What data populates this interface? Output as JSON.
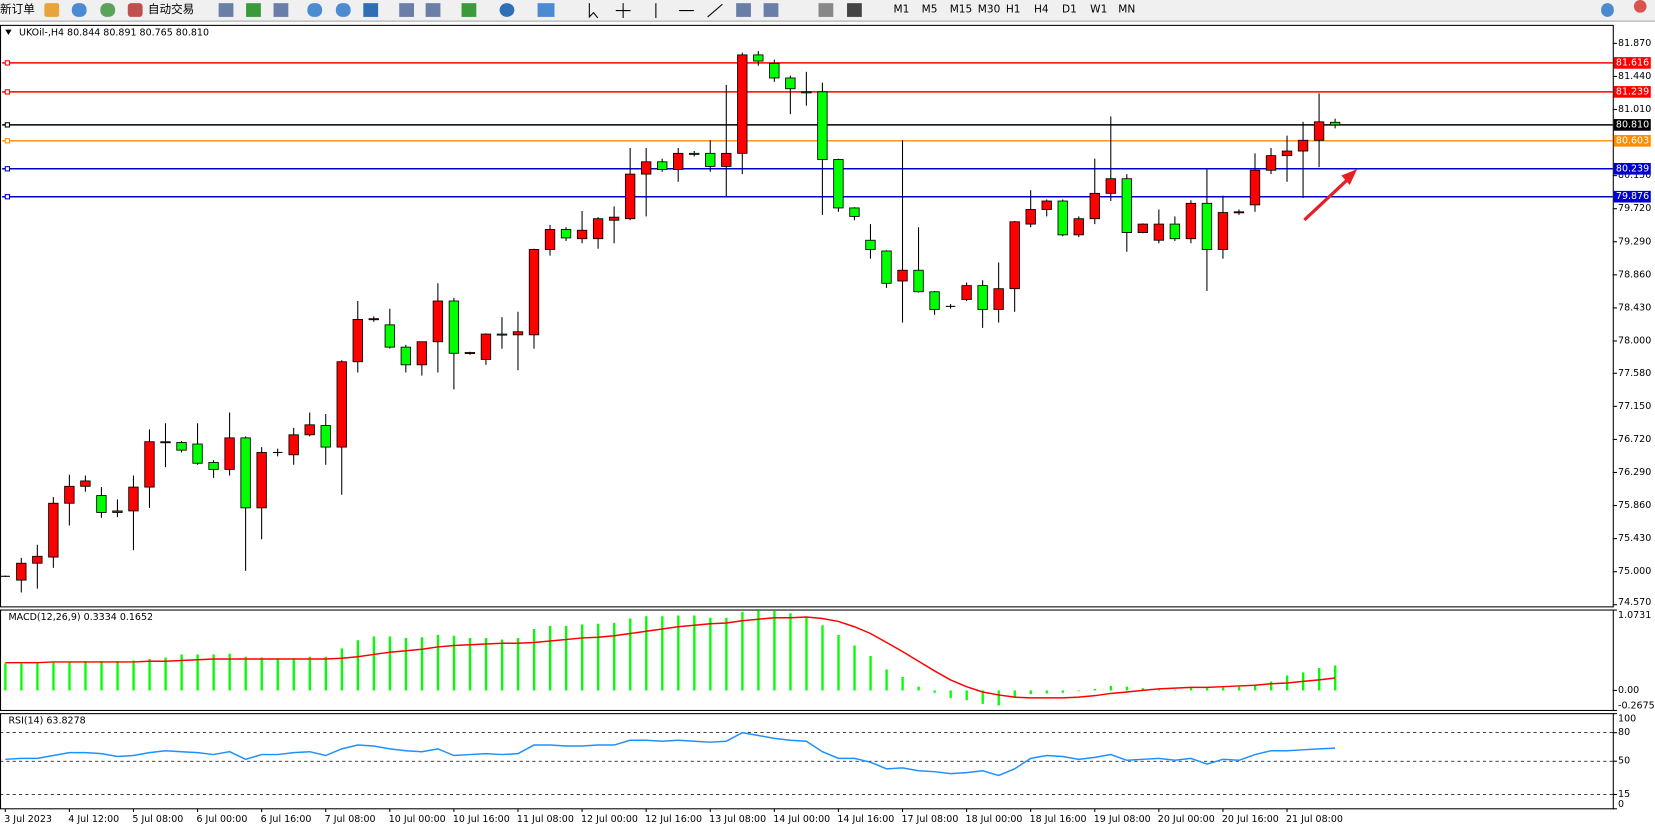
{
  "toolbar": {
    "new_order": "新订单",
    "auto_trading": "自动交易",
    "timeframes": [
      "M1",
      "M5",
      "M15",
      "M30",
      "H1",
      "H4",
      "D1",
      "W1",
      "MN"
    ]
  },
  "chart_data": [
    {
      "type": "candlestick",
      "title": "UKOil-,H4  80.844 80.891 80.765 80.810",
      "categories": [
        "3 Jul 2023",
        null,
        null,
        null,
        "4 Jul 12:00",
        null,
        null,
        null,
        "5 Jul 08:00",
        null,
        null,
        null,
        "6 Jul 00:00",
        null,
        null,
        null,
        "6 Jul 16:00",
        null,
        null,
        null,
        "7 Jul 08:00",
        null,
        null,
        null,
        "10 Jul 00:00",
        null,
        null,
        null,
        "10 Jul 16:00",
        null,
        null,
        null,
        "11 Jul 08:00",
        null,
        null,
        null,
        "12 Jul 00:00",
        null,
        null,
        null,
        "12 Jul 16:00",
        null,
        null,
        null,
        "13 Jul 08:00",
        null,
        null,
        null,
        "14 Jul 00:00",
        null,
        null,
        null,
        "14 Jul 16:00",
        null,
        null,
        null,
        "17 Jul 08:00",
        null,
        null,
        null,
        "18 Jul 00:00",
        null,
        null,
        null,
        "18 Jul 16:00",
        null,
        null,
        null,
        "19 Jul 08:00",
        null,
        null,
        null,
        "20 Jul 00:00",
        null,
        null,
        null,
        "20 Jul 16:00",
        null,
        null,
        null,
        "21 Jul 08:00",
        null,
        null,
        null
      ],
      "open": [
        74.94,
        74.89,
        75.11,
        75.19,
        75.89,
        76.11,
        75.99,
        75.77,
        75.79,
        76.1,
        76.68,
        76.68,
        76.66,
        76.42,
        76.33,
        76.74,
        75.83,
        76.55,
        76.52,
        76.78,
        76.9,
        76.62,
        77.73,
        78.28,
        78.21,
        77.92,
        77.69,
        77.99,
        78.52,
        77.84,
        77.76,
        78.09,
        78.08,
        78.08,
        79.19,
        79.45,
        79.33,
        79.33,
        79.57,
        79.59,
        80.17,
        80.33,
        80.23,
        80.44,
        80.44,
        80.27,
        80.44,
        81.72,
        81.61,
        81.42,
        81.24,
        81.24,
        80.36,
        79.73,
        79.31,
        79.17,
        78.78,
        78.92,
        78.64,
        78.45,
        78.54,
        78.72,
        78.41,
        78.68,
        79.52,
        79.71,
        79.82,
        79.38,
        79.59,
        79.92,
        80.11,
        79.41,
        79.31,
        79.52,
        79.33,
        79.79,
        79.19,
        79.67,
        79.77,
        80.22,
        80.41,
        80.47,
        80.61,
        80.844
      ],
      "high": [
        74.95,
        75.18,
        75.35,
        75.97,
        76.26,
        76.25,
        76.1,
        75.94,
        76.25,
        76.85,
        76.93,
        76.7,
        76.93,
        76.45,
        77.07,
        76.76,
        76.62,
        76.6,
        76.87,
        77.07,
        77.05,
        77.75,
        78.52,
        78.32,
        78.42,
        77.95,
        77.99,
        78.75,
        78.56,
        77.86,
        78.1,
        78.31,
        78.38,
        79.2,
        79.51,
        79.48,
        79.69,
        79.61,
        79.75,
        80.51,
        80.51,
        80.37,
        80.51,
        80.47,
        80.61,
        81.33,
        81.75,
        81.77,
        81.66,
        81.45,
        81.5,
        81.36,
        80.37,
        79.74,
        79.52,
        79.18,
        80.61,
        79.48,
        78.65,
        78.48,
        78.76,
        78.79,
        79.02,
        79.56,
        79.96,
        79.84,
        79.84,
        79.62,
        80.37,
        80.92,
        80.17,
        79.53,
        79.71,
        79.62,
        79.83,
        80.23,
        79.89,
        79.71,
        80.44,
        80.51,
        80.67,
        80.85,
        81.22,
        80.891
      ],
      "low": [
        74.93,
        74.73,
        74.78,
        75.05,
        75.6,
        76.04,
        75.7,
        75.71,
        75.28,
        75.83,
        76.36,
        76.55,
        76.39,
        76.22,
        76.25,
        75.01,
        75.42,
        76.5,
        76.39,
        76.76,
        76.39,
        76.0,
        77.59,
        78.25,
        77.9,
        77.59,
        77.55,
        77.59,
        77.37,
        77.82,
        77.69,
        77.9,
        77.62,
        77.9,
        79.11,
        79.3,
        79.27,
        79.2,
        79.27,
        79.57,
        79.62,
        80.2,
        80.07,
        80.4,
        80.2,
        79.88,
        80.17,
        81.58,
        81.37,
        80.95,
        81.06,
        79.64,
        79.68,
        79.57,
        79.07,
        78.69,
        78.24,
        78.63,
        78.34,
        78.42,
        78.52,
        78.17,
        78.24,
        78.38,
        79.48,
        79.62,
        79.36,
        79.35,
        79.52,
        79.82,
        79.16,
        79.4,
        79.27,
        79.3,
        79.27,
        78.65,
        79.07,
        79.64,
        79.68,
        80.17,
        80.07,
        79.86,
        80.26,
        80.765
      ],
      "close": [
        74.94,
        75.11,
        75.2,
        75.89,
        76.11,
        76.18,
        75.77,
        75.79,
        76.1,
        76.69,
        76.69,
        76.58,
        76.41,
        76.33,
        76.74,
        75.83,
        76.55,
        76.55,
        76.78,
        76.91,
        76.62,
        77.73,
        78.28,
        78.29,
        77.92,
        77.69,
        77.99,
        78.52,
        77.84,
        77.85,
        78.09,
        78.08,
        78.12,
        79.19,
        79.45,
        79.34,
        79.44,
        79.59,
        79.61,
        80.17,
        80.33,
        80.23,
        80.44,
        80.43,
        80.27,
        80.44,
        81.72,
        81.64,
        81.42,
        81.28,
        81.23,
        80.36,
        79.73,
        79.62,
        79.19,
        78.75,
        78.92,
        78.64,
        78.41,
        78.45,
        78.72,
        78.41,
        78.68,
        79.55,
        79.71,
        79.82,
        79.38,
        79.59,
        79.92,
        80.11,
        79.41,
        79.52,
        79.52,
        79.33,
        79.79,
        79.19,
        79.67,
        79.68,
        80.22,
        80.41,
        80.47,
        80.61,
        80.85,
        80.81
      ],
      "up_color": "#ff0000",
      "down_color": "#00ff00",
      "ylim": [
        74.5425,
        82.104
      ],
      "yticks": [
        {
          "value": 81.87,
          "label": "81.870"
        },
        {
          "value": 81.44,
          "label": "81.440"
        },
        {
          "value": 81.01,
          "label": "81.010"
        },
        {
          "value": 80.15,
          "label": "80.150"
        },
        {
          "value": 79.72,
          "label": "79.720"
        },
        {
          "value": 79.29,
          "label": "79.290"
        },
        {
          "value": 78.86,
          "label": "78.860"
        },
        {
          "value": 78.43,
          "label": "78.430"
        },
        {
          "value": 78.0,
          "label": "78.000"
        },
        {
          "value": 77.58,
          "label": "77.580"
        },
        {
          "value": 77.15,
          "label": "77.150"
        },
        {
          "value": 76.72,
          "label": "76.720"
        },
        {
          "value": 76.29,
          "label": "76.290"
        },
        {
          "value": 75.86,
          "label": "75.860"
        },
        {
          "value": 75.43,
          "label": "75.430"
        },
        {
          "value": 75.0,
          "label": "75.000"
        },
        {
          "value": 74.57,
          "label": "74.570"
        }
      ],
      "hlines": [
        {
          "value": 81.616,
          "label": "81.616",
          "color": "#ff0000"
        },
        {
          "value": 81.239,
          "label": "81.239",
          "color": "#ff0000"
        },
        {
          "value": 80.81,
          "label": "80.810",
          "color": "#000000"
        },
        {
          "value": 80.603,
          "label": "80.603",
          "color": "#ff8c00"
        },
        {
          "value": 80.239,
          "label": "80.239",
          "color": "#0000cd"
        },
        {
          "value": 79.876,
          "label": "79.876",
          "color": "#0000cd"
        }
      ]
    },
    {
      "type": "combo",
      "title": "MACD(12,26,9) 0.3334 0.1652",
      "series": [
        {
          "type": "bar",
          "color": "#00ff00",
          "values": [
            0.36,
            0.36,
            0.37,
            0.38,
            0.38,
            0.39,
            0.39,
            0.39,
            0.4,
            0.42,
            0.44,
            0.48,
            0.48,
            0.48,
            0.49,
            0.45,
            0.44,
            0.43,
            0.43,
            0.45,
            0.45,
            0.56,
            0.67,
            0.72,
            0.72,
            0.7,
            0.71,
            0.74,
            0.73,
            0.7,
            0.7,
            0.68,
            0.7,
            0.82,
            0.86,
            0.86,
            0.88,
            0.89,
            0.9,
            0.96,
            0.99,
            0.99,
            1.0,
            1.0,
            0.97,
            0.97,
            1.05,
            1.07,
            1.06,
            1.03,
            0.98,
            0.87,
            0.74,
            0.6,
            0.46,
            0.28,
            0.18,
            0.05,
            -0.03,
            -0.1,
            -0.13,
            -0.18,
            -0.2,
            -0.1,
            -0.05,
            -0.04,
            -0.03,
            -0.01,
            0.02,
            0.06,
            0.05,
            0.03,
            0.02,
            0.01,
            0.04,
            0.03,
            0.04,
            0.05,
            0.07,
            0.12,
            0.2,
            0.24,
            0.3,
            0.3334
          ]
        },
        {
          "type": "line",
          "color": "#ff0000",
          "values": [
            0.37,
            0.37,
            0.37,
            0.38,
            0.38,
            0.38,
            0.38,
            0.38,
            0.38,
            0.39,
            0.39,
            0.4,
            0.41,
            0.42,
            0.42,
            0.42,
            0.42,
            0.42,
            0.42,
            0.42,
            0.42,
            0.43,
            0.45,
            0.48,
            0.51,
            0.53,
            0.55,
            0.58,
            0.6,
            0.61,
            0.62,
            0.63,
            0.63,
            0.64,
            0.66,
            0.68,
            0.7,
            0.71,
            0.73,
            0.76,
            0.79,
            0.82,
            0.85,
            0.87,
            0.89,
            0.9,
            0.93,
            0.95,
            0.97,
            0.97,
            0.98,
            0.96,
            0.92,
            0.85,
            0.76,
            0.64,
            0.52,
            0.39,
            0.26,
            0.14,
            0.05,
            -0.02,
            -0.06,
            -0.09,
            -0.1,
            -0.1,
            -0.1,
            -0.09,
            -0.07,
            -0.04,
            -0.02,
            0.0,
            0.02,
            0.03,
            0.04,
            0.04,
            0.05,
            0.06,
            0.07,
            0.09,
            0.1,
            0.12,
            0.14,
            0.1652
          ]
        }
      ],
      "ylim": [
        -0.2675,
        1.0731
      ],
      "yticks": [
        1.0731,
        {
          "value": 0,
          "label": "0.00"
        },
        -0.2675
      ]
    },
    {
      "type": "line",
      "title": "RSI(14) 63.8278",
      "series": [
        {
          "color": "#1e90ff",
          "values": [
            52,
            53,
            53,
            56,
            59,
            59,
            58,
            55,
            56,
            59,
            61,
            60,
            59,
            57,
            60,
            52,
            57,
            57,
            59,
            60,
            56,
            63,
            67,
            66,
            63,
            61,
            60,
            63,
            56,
            57,
            58,
            57,
            58,
            67,
            67,
            66,
            66,
            67,
            67,
            72,
            72,
            71,
            72,
            71,
            70,
            71,
            80,
            77,
            74,
            72,
            71,
            60,
            53,
            53,
            49,
            42,
            43,
            40,
            39,
            37,
            38,
            40,
            35,
            42,
            53,
            56,
            55,
            52,
            54,
            57,
            51,
            52,
            53,
            51,
            53,
            47,
            52,
            51,
            57,
            61,
            61,
            62,
            63,
            63.8278
          ]
        }
      ],
      "levels": [
        80,
        50,
        15
      ],
      "ylim": [
        0,
        100
      ],
      "yticks": [
        100,
        80,
        50,
        15,
        0
      ]
    }
  ]
}
